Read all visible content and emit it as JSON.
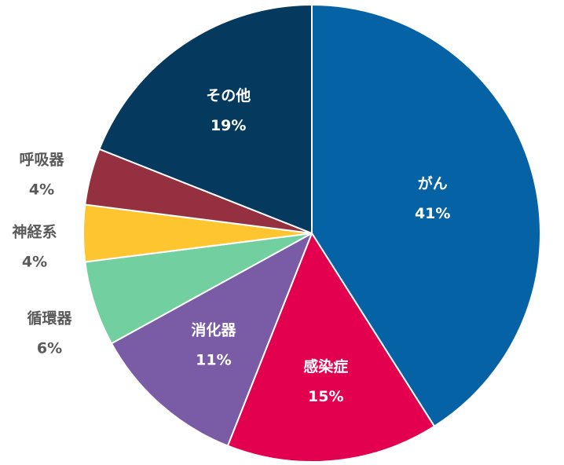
{
  "chart_data": {
    "type": "pie",
    "title": "",
    "start_angle_deg": 0,
    "direction": "clockwise",
    "slices": [
      {
        "label": "がん",
        "value": 41,
        "value_label": "41%",
        "color": "#0563A5",
        "label_position": "inside",
        "label_color": "#ffffff"
      },
      {
        "label": "感染症",
        "value": 15,
        "value_label": "15%",
        "color": "#E3004F",
        "label_position": "inside",
        "label_color": "#ffffff"
      },
      {
        "label": "消化器",
        "value": 11,
        "value_label": "11%",
        "color": "#7A5BA6",
        "label_position": "inside",
        "label_color": "#ffffff"
      },
      {
        "label": "循環器",
        "value": 6,
        "value_label": "6%",
        "color": "#72CFA0",
        "label_position": "outside",
        "label_color": "#595959"
      },
      {
        "label": "神経系",
        "value": 4,
        "value_label": "4%",
        "color": "#FDC52F",
        "label_position": "outside",
        "label_color": "#595959"
      },
      {
        "label": "呼吸器",
        "value": 4,
        "value_label": "4%",
        "color": "#94303F",
        "label_position": "outside",
        "label_color": "#595959"
      },
      {
        "label": "その他",
        "value": 19,
        "value_label": "19%",
        "color": "#053A5E",
        "label_position": "inside",
        "label_color": "#ffffff"
      }
    ],
    "slice_border_color": "#ffffff"
  }
}
